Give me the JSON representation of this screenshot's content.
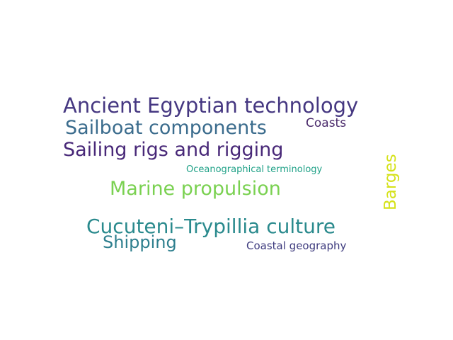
{
  "words": [
    {
      "text": "Ancient Egyptian technology",
      "color": "#453781"
    },
    {
      "text": "Sailboat components",
      "color": "#3b6c8d"
    },
    {
      "text": "Coasts",
      "color": "#4a2a6b"
    },
    {
      "text": "Sailing rigs and rigging",
      "color": "#482878"
    },
    {
      "text": "Oceanographical terminology",
      "color": "#1fa187"
    },
    {
      "text": "Barges",
      "color": "#d5e21a"
    },
    {
      "text": "Marine propulsion",
      "color": "#7ad151"
    },
    {
      "text": "Cucuteni–Trypillia culture",
      "color": "#2a8a8d"
    },
    {
      "text": "Shipping",
      "color": "#2e7f8e"
    },
    {
      "text": "Coastal geography",
      "color": "#3e3b7e"
    }
  ]
}
